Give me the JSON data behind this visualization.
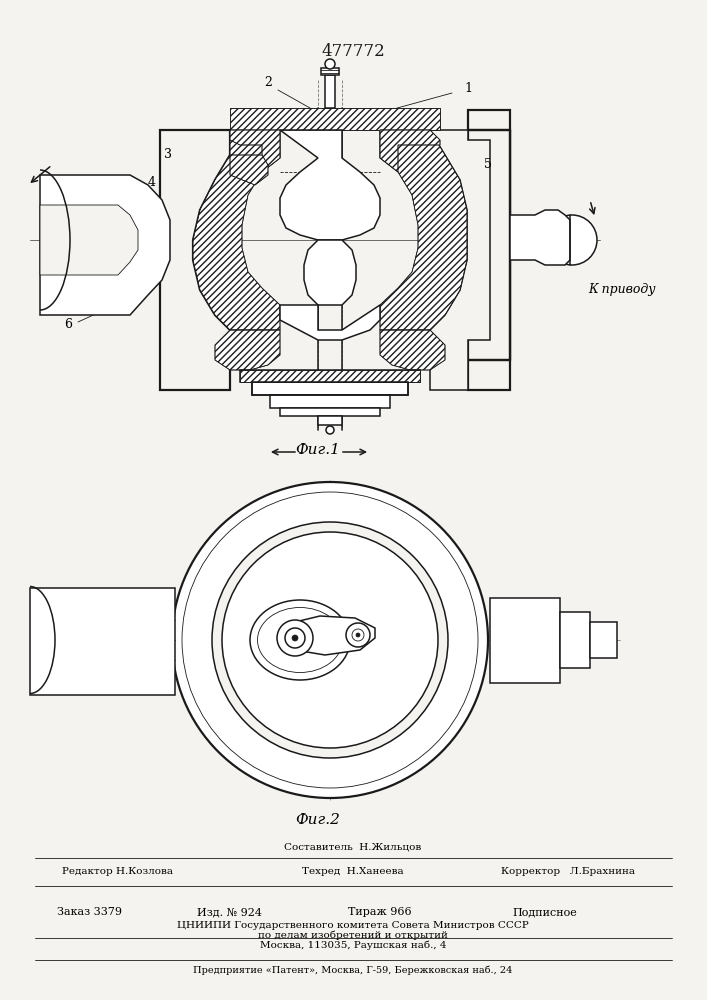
{
  "patent_number": "477772",
  "fig1_label": "Фиг.1",
  "fig2_label": "Фиг.2",
  "k_privodu": "К приводу",
  "label1": "1",
  "label2": "2",
  "label3": "3",
  "label4": "4",
  "label5": "5",
  "label6": "6",
  "footer_sestavitel": "Составитель  Н.Жильцов",
  "footer_redaktor": "Редактор Н.Козлова",
  "footer_tekhred": "Техред  Н.Ханеева",
  "footer_korrektor": "Корректор   Л.Брахнина",
  "footer_zakaz": "Заказ 3379",
  "footer_izd": "Изд. № 924",
  "footer_tirazh": "Тираж 966",
  "footer_podpisnoe": "Подписное",
  "footer_tsniip1": "ЦНИИПИ Государственного комитета Совета Министров СССР",
  "footer_tsniip2": "по делам изобретений и открытий",
  "footer_moskva": "Москва, 113035, Раушская наб., 4",
  "footer_predpr": "Предприятие «Патент», Москва, Г-59, Бережковская наб., 24",
  "bg_color": "#f5f3ef",
  "line_color": "#1a1a1a"
}
